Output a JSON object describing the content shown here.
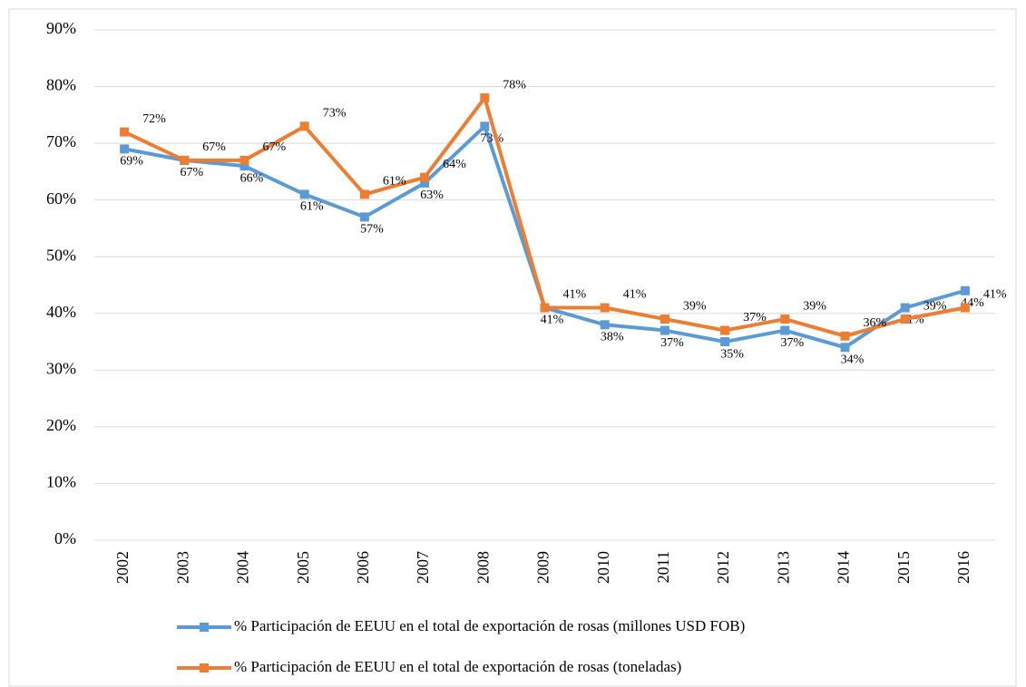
{
  "chart_data": {
    "type": "line",
    "categories": [
      "2002",
      "2003",
      "2004",
      "2005",
      "2006",
      "2007",
      "2008",
      "2009",
      "2010",
      "2011",
      "2012",
      "2013",
      "2014",
      "2015",
      "2016"
    ],
    "series": [
      {
        "name": "% Participación de EEUU en el total de exportación de rosas (millones USD FOB)",
        "color": "#5b9bd5",
        "values": [
          69,
          67,
          66,
          61,
          57,
          63,
          73,
          41,
          38,
          37,
          35,
          37,
          34,
          41,
          44
        ],
        "value_labels": [
          "69%",
          "67%",
          "66%",
          "61%",
          "57%",
          "63%",
          "73%",
          "41%",
          "38%",
          "37%",
          "35%",
          "37%",
          "34%",
          "41%",
          "44%"
        ]
      },
      {
        "name": "% Participación de EEUU en el total de exportación de rosas (toneladas)",
        "color": "#ed7d31",
        "values": [
          72,
          67,
          67,
          73,
          61,
          64,
          78,
          41,
          41,
          39,
          37,
          39,
          36,
          39,
          41
        ],
        "value_labels": [
          "72%",
          "67%",
          "67%",
          "73%",
          "61%",
          "64%",
          "78%",
          "41%",
          "41%",
          "39%",
          "37%",
          "39%",
          "36%",
          "39%",
          "41%"
        ]
      }
    ],
    "ylim": [
      0,
      90
    ],
    "yticks": [
      {
        "value": 0,
        "label": "0%"
      },
      {
        "value": 10,
        "label": "10%"
      },
      {
        "value": 20,
        "label": "20%"
      },
      {
        "value": 30,
        "label": "30%"
      },
      {
        "value": 40,
        "label": "40%"
      },
      {
        "value": 50,
        "label": "50%"
      },
      {
        "value": 60,
        "label": "60%"
      },
      {
        "value": 70,
        "label": "70%"
      },
      {
        "value": 80,
        "label": "80%"
      },
      {
        "value": 90,
        "label": "90%"
      }
    ],
    "grid": true,
    "legend": "bottom"
  }
}
